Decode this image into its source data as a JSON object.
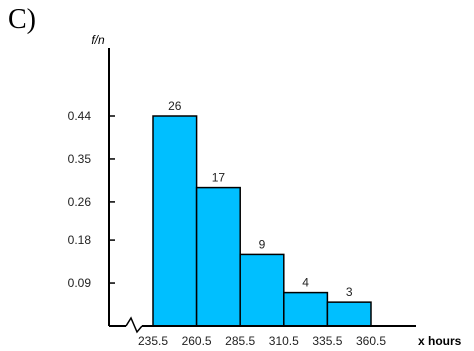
{
  "panel_label": "C)",
  "chart_data": {
    "type": "bar",
    "style": "histogram",
    "ylabel": "f/n",
    "xlabel": "x hours",
    "bin_edges": [
      235.5,
      260.5,
      285.5,
      310.5,
      335.5,
      360.5
    ],
    "bin_edge_labels": [
      "235.5",
      "260.5",
      "285.5",
      "310.5",
      "335.5",
      "360.5"
    ],
    "frequencies": [
      26,
      17,
      9,
      4,
      3
    ],
    "data_labels": [
      "26",
      "17",
      "9",
      "4",
      "3"
    ],
    "relative_frequencies": [
      0.44,
      0.29,
      0.15,
      0.07,
      0.05
    ],
    "y_ticks": [
      0.09,
      0.18,
      0.26,
      0.35,
      0.44
    ],
    "y_tick_labels": [
      "0.09",
      "0.18",
      "0.26",
      "0.35",
      "0.44"
    ],
    "x_axis_break": true,
    "bar_color": "#00bfff",
    "grid": false
  }
}
